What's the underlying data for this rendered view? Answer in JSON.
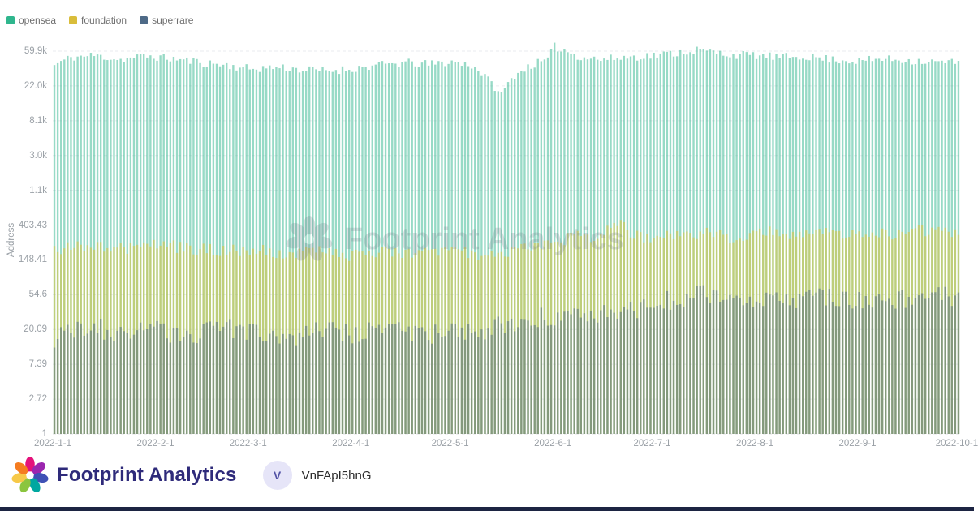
{
  "legend": {
    "items": [
      {
        "label": "opensea",
        "color": "#2fb68d"
      },
      {
        "label": "foundation",
        "color": "#d9bd3a"
      },
      {
        "label": "superrare",
        "color": "#4e6a87"
      }
    ]
  },
  "chart_data": {
    "type": "bar",
    "title": "",
    "xlabel": "",
    "ylabel": "Address",
    "scale": "log",
    "grid": true,
    "legend_position": "top-left",
    "ylim": [
      1,
      59874
    ],
    "y_ticks": [
      "59.9k",
      "22.0k",
      "8.1k",
      "3.0k",
      "1.1k",
      "403.43",
      "148.41",
      "54.6",
      "20.09",
      "7.39",
      "2.72",
      "1"
    ],
    "y_tick_values": [
      59874,
      22026,
      8103,
      2981,
      1097,
      403.43,
      148.41,
      54.6,
      20.09,
      7.39,
      2.72,
      1
    ],
    "x_ticks": [
      {
        "label": "2022-1-1",
        "day": 0
      },
      {
        "label": "2022-2-1",
        "day": 31
      },
      {
        "label": "2022-3-1",
        "day": 59
      },
      {
        "label": "2022-4-1",
        "day": 90
      },
      {
        "label": "2022-5-1",
        "day": 120
      },
      {
        "label": "2022-6-1",
        "day": 151
      },
      {
        "label": "2022-7-1",
        "day": 181
      },
      {
        "label": "2022-8-1",
        "day": 212
      },
      {
        "label": "2022-9-1",
        "day": 243
      },
      {
        "label": "2022-10-1",
        "day": 273
      }
    ],
    "days_total": 274,
    "series": [
      {
        "name": "opensea",
        "fill": "rgba(47,182,141,0.5)",
        "noise": 0.12,
        "anchors": [
          [
            0,
            40000
          ],
          [
            5,
            50000
          ],
          [
            12,
            53000
          ],
          [
            20,
            47000
          ],
          [
            28,
            52000
          ],
          [
            36,
            48000
          ],
          [
            45,
            43000
          ],
          [
            52,
            40000
          ],
          [
            59,
            36000
          ],
          [
            68,
            38000
          ],
          [
            75,
            35000
          ],
          [
            82,
            34000
          ],
          [
            90,
            36000
          ],
          [
            98,
            40000
          ],
          [
            106,
            43000
          ],
          [
            113,
            41000
          ],
          [
            120,
            44000
          ],
          [
            126,
            40000
          ],
          [
            131,
            26000
          ],
          [
            135,
            17000
          ],
          [
            139,
            30000
          ],
          [
            144,
            40000
          ],
          [
            149,
            46000
          ],
          [
            151,
            68000
          ],
          [
            154,
            62000
          ],
          [
            158,
            52000
          ],
          [
            165,
            47000
          ],
          [
            172,
            50000
          ],
          [
            178,
            52000
          ],
          [
            181,
            53000
          ],
          [
            188,
            57000
          ],
          [
            194,
            62000
          ],
          [
            199,
            58000
          ],
          [
            205,
            54000
          ],
          [
            212,
            53000
          ],
          [
            219,
            50000
          ],
          [
            226,
            52000
          ],
          [
            233,
            48000
          ],
          [
            243,
            45000
          ],
          [
            250,
            48000
          ],
          [
            258,
            46000
          ],
          [
            265,
            44000
          ],
          [
            273,
            43000
          ]
        ]
      },
      {
        "name": "foundation",
        "fill": "rgba(222,196,60,0.55)",
        "noise": 0.18,
        "anchors": [
          [
            0,
            190
          ],
          [
            10,
            230
          ],
          [
            20,
            200
          ],
          [
            31,
            230
          ],
          [
            40,
            210
          ],
          [
            50,
            190
          ],
          [
            59,
            200
          ],
          [
            70,
            180
          ],
          [
            80,
            190
          ],
          [
            90,
            170
          ],
          [
            100,
            185
          ],
          [
            110,
            175
          ],
          [
            120,
            190
          ],
          [
            130,
            170
          ],
          [
            140,
            200
          ],
          [
            151,
            240
          ],
          [
            158,
            300
          ],
          [
            164,
            260
          ],
          [
            170,
            430
          ],
          [
            175,
            300
          ],
          [
            181,
            280
          ],
          [
            190,
            330
          ],
          [
            199,
            310
          ],
          [
            206,
            280
          ],
          [
            212,
            300
          ],
          [
            218,
            340
          ],
          [
            225,
            290
          ],
          [
            232,
            350
          ],
          [
            240,
            300
          ],
          [
            248,
            330
          ],
          [
            256,
            300
          ],
          [
            262,
            350
          ],
          [
            268,
            320
          ],
          [
            273,
            340
          ]
        ]
      },
      {
        "name": "superrare",
        "fill": "rgba(73,99,125,0.5)",
        "noise": 0.3,
        "anchors": [
          [
            0,
            16
          ],
          [
            10,
            22
          ],
          [
            20,
            18
          ],
          [
            31,
            20
          ],
          [
            40,
            16
          ],
          [
            50,
            22
          ],
          [
            59,
            18
          ],
          [
            70,
            16
          ],
          [
            80,
            20
          ],
          [
            90,
            18
          ],
          [
            100,
            22
          ],
          [
            110,
            17
          ],
          [
            120,
            18
          ],
          [
            130,
            20
          ],
          [
            140,
            24
          ],
          [
            151,
            30
          ],
          [
            160,
            34
          ],
          [
            170,
            30
          ],
          [
            181,
            42
          ],
          [
            190,
            50
          ],
          [
            199,
            55
          ],
          [
            206,
            48
          ],
          [
            212,
            52
          ],
          [
            220,
            45
          ],
          [
            228,
            55
          ],
          [
            236,
            50
          ],
          [
            243,
            46
          ],
          [
            252,
            50
          ],
          [
            260,
            44
          ],
          [
            266,
            52
          ],
          [
            273,
            50
          ]
        ]
      }
    ]
  },
  "watermark": {
    "text": "Footprint Analytics"
  },
  "footer": {
    "brand": "Footprint Analytics",
    "avatar_initial": "V",
    "user_id": "VnFApI5hnG"
  }
}
